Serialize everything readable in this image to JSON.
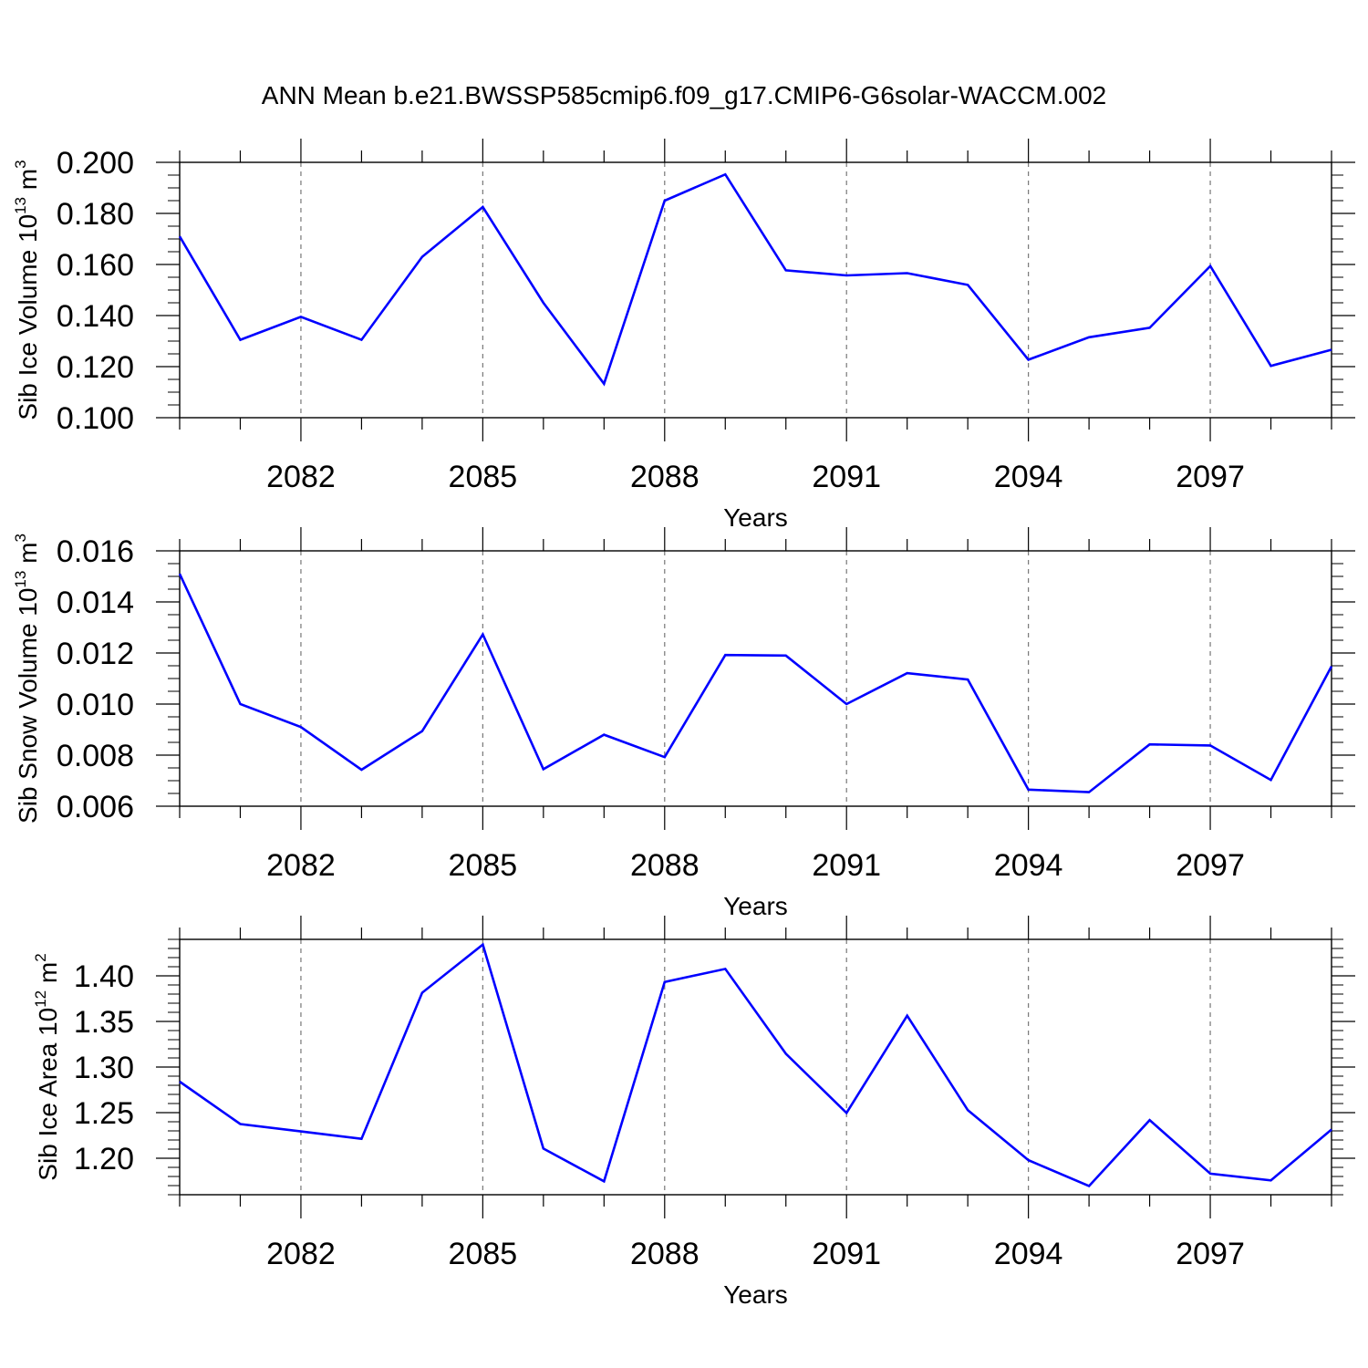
{
  "page_title": "ANN Mean b.e21.BWSSP585cmip6.f09_g17.CMIP6-G6solar-WACCM.002",
  "colors": {
    "line": "#0000ff",
    "axis": "#000000",
    "grid": "#777777"
  },
  "chart_data": [
    {
      "type": "line",
      "title": "ANN Mean b.e21.BWSSP585cmip6.f09_g17.CMIP6-G6solar-WACCM.002",
      "xlabel": "Years",
      "ylabel_text": "Sib Ice Volume 10",
      "ylabel_exp": "13",
      "ylabel_unit": " m",
      "ylabel_unit_exp": "3",
      "xlim": [
        2080,
        2099
      ],
      "ylim": [
        0.1,
        0.2
      ],
      "yticks": [
        0.1,
        0.12,
        0.14,
        0.16,
        0.18,
        0.2
      ],
      "ytick_labels": [
        "0.100",
        "0.120",
        "0.140",
        "0.160",
        "0.180",
        "0.200"
      ],
      "xticks": [
        2082,
        2085,
        2088,
        2091,
        2094,
        2097
      ],
      "xtick_labels": [
        "2082",
        "2085",
        "2088",
        "2091",
        "2094",
        "2097"
      ],
      "grid": "vertical dashed at labeled x ticks",
      "x": [
        2080,
        2081,
        2082,
        2083,
        2084,
        2085,
        2086,
        2087,
        2088,
        2089,
        2090,
        2091,
        2092,
        2093,
        2094,
        2095,
        2096,
        2097,
        2098,
        2099
      ],
      "series": [
        {
          "values": [
            0.171,
            0.1305,
            0.1395,
            0.1305,
            0.163,
            0.1825,
            0.145,
            0.1133,
            0.185,
            0.1953,
            0.1577,
            0.1557,
            0.1566,
            0.152,
            0.1227,
            0.1315,
            0.1352,
            0.1594,
            0.1203,
            0.1266
          ]
        }
      ]
    },
    {
      "type": "line",
      "xlabel": "Years",
      "ylabel_text": "Sib Snow Volume 10",
      "ylabel_exp": "13",
      "ylabel_unit": " m",
      "ylabel_unit_exp": "3",
      "xlim": [
        2080,
        2099
      ],
      "ylim": [
        0.006,
        0.016
      ],
      "yticks": [
        0.006,
        0.008,
        0.01,
        0.012,
        0.014,
        0.016
      ],
      "ytick_labels": [
        "0.006",
        "0.008",
        "0.010",
        "0.012",
        "0.014",
        "0.016"
      ],
      "xticks": [
        2082,
        2085,
        2088,
        2091,
        2094,
        2097
      ],
      "xtick_labels": [
        "2082",
        "2085",
        "2088",
        "2091",
        "2094",
        "2097"
      ],
      "grid": "vertical dashed at labeled x ticks",
      "x": [
        2080,
        2081,
        2082,
        2083,
        2084,
        2085,
        2086,
        2087,
        2088,
        2089,
        2090,
        2091,
        2092,
        2093,
        2094,
        2095,
        2096,
        2097,
        2098,
        2099
      ],
      "series": [
        {
          "values": [
            0.0151,
            0.01,
            0.0091,
            0.00743,
            0.00894,
            0.01273,
            0.00745,
            0.0088,
            0.00792,
            0.01192,
            0.0119,
            0.01,
            0.01121,
            0.01096,
            0.00665,
            0.00655,
            0.00842,
            0.00838,
            0.00703,
            0.01148
          ]
        }
      ]
    },
    {
      "type": "line",
      "xlabel": "Years",
      "ylabel_text": "Sib Ice Area 10",
      "ylabel_exp": "12",
      "ylabel_unit": " m",
      "ylabel_unit_exp": "2",
      "xlim": [
        2080,
        2099
      ],
      "ylim": [
        1.16,
        1.44
      ],
      "yticks": [
        1.2,
        1.25,
        1.3,
        1.35,
        1.4
      ],
      "ytick_labels": [
        "1.20",
        "1.25",
        "1.30",
        "1.35",
        "1.40"
      ],
      "xticks": [
        2082,
        2085,
        2088,
        2091,
        2094,
        2097
      ],
      "xtick_labels": [
        "2082",
        "2085",
        "2088",
        "2091",
        "2094",
        "2097"
      ],
      "grid": "vertical dashed at labeled x ticks",
      "x": [
        2080,
        2081,
        2082,
        2083,
        2084,
        2085,
        2086,
        2087,
        2088,
        2089,
        2090,
        2091,
        2092,
        2093,
        2094,
        2095,
        2096,
        2097,
        2098,
        2099
      ],
      "series": [
        {
          "values": [
            1.284,
            1.2375,
            1.2294,
            1.2213,
            1.3815,
            1.4343,
            1.2106,
            1.1747,
            1.3933,
            1.4076,
            1.3146,
            1.2497,
            1.3563,
            1.2527,
            1.1979,
            1.1695,
            1.2418,
            1.1831,
            1.1757,
            1.2315
          ]
        }
      ]
    }
  ]
}
